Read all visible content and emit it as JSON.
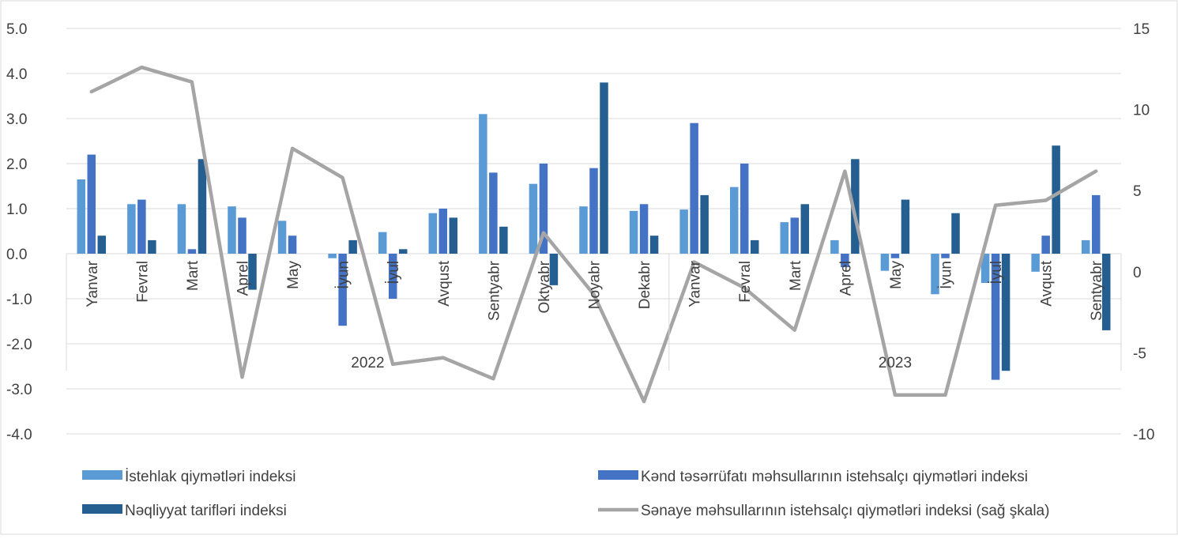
{
  "chart_data": {
    "type": "bar",
    "categories": [
      "Yanvar",
      "Fevral",
      "Mart",
      "Aprel",
      "May",
      "İyun",
      "İyul",
      "Avqust",
      "Sentyabr",
      "Oktyabr",
      "Noyabr",
      "Dekabr",
      "Yanvar",
      "Fevral",
      "Mart",
      "Aprel",
      "May",
      "İyun",
      "İyul",
      "Avqust",
      "Sentyabr"
    ],
    "groups": [
      {
        "label": "2022",
        "count": 12
      },
      {
        "label": "2023",
        "count": 9
      }
    ],
    "left_axis": {
      "ylim": [
        -4.0,
        5.0
      ],
      "ticks": [
        "5.0",
        "4.0",
        "3.0",
        "2.0",
        "1.0",
        "0.0",
        "-1.0",
        "-2.0",
        "-3.0",
        "-4.0"
      ]
    },
    "right_axis": {
      "ylim": [
        -10,
        15
      ],
      "ticks": [
        "15",
        "10",
        "5",
        "0",
        "-5",
        "-10"
      ]
    },
    "series": [
      {
        "name": "İstehlak qiymətləri indeksi",
        "kind": "bar",
        "axis": "left",
        "color": "#5b9bd5",
        "values": [
          1.65,
          1.1,
          1.1,
          1.05,
          0.73,
          -0.1,
          0.48,
          0.9,
          3.1,
          1.55,
          1.05,
          0.95,
          0.98,
          1.48,
          0.7,
          0.3,
          -0.38,
          -0.9,
          -0.65,
          -0.4,
          0.3
        ]
      },
      {
        "name": "Kənd təsərrüfatı məhsullarının istehsalçı qiymətləri indeksi",
        "kind": "bar",
        "axis": "left",
        "color": "#4472c4",
        "values": [
          2.2,
          1.2,
          0.1,
          0.8,
          0.4,
          -1.6,
          -1.0,
          1.0,
          1.8,
          2.0,
          1.9,
          1.1,
          2.9,
          2.0,
          0.8,
          -0.3,
          -0.1,
          -0.1,
          -2.8,
          0.4,
          1.3
        ]
      },
      {
        "name": "Nəqliyyat tarifləri indeksi",
        "kind": "bar",
        "axis": "left",
        "color": "#255e91",
        "values": [
          0.4,
          0.3,
          2.1,
          -0.8,
          0.0,
          0.3,
          0.1,
          0.8,
          0.6,
          -0.7,
          3.8,
          0.4,
          1.3,
          0.3,
          1.1,
          2.1,
          1.2,
          0.9,
          -2.6,
          2.4,
          -1.7
        ]
      },
      {
        "name": "Sənaye məhsullarının istehsalçı qiymətləri indeksi (sağ şkala)",
        "kind": "line",
        "axis": "right",
        "color": "#a5a5a5",
        "values": [
          11.1,
          12.6,
          11.7,
          -6.5,
          7.6,
          5.8,
          -5.7,
          -5.3,
          -6.6,
          2.4,
          -1.4,
          -8.0,
          0.6,
          -1.0,
          -3.6,
          6.2,
          -7.6,
          -7.6,
          4.1,
          4.4,
          6.2
        ]
      }
    ],
    "grid": true,
    "legend_position": "bottom"
  }
}
